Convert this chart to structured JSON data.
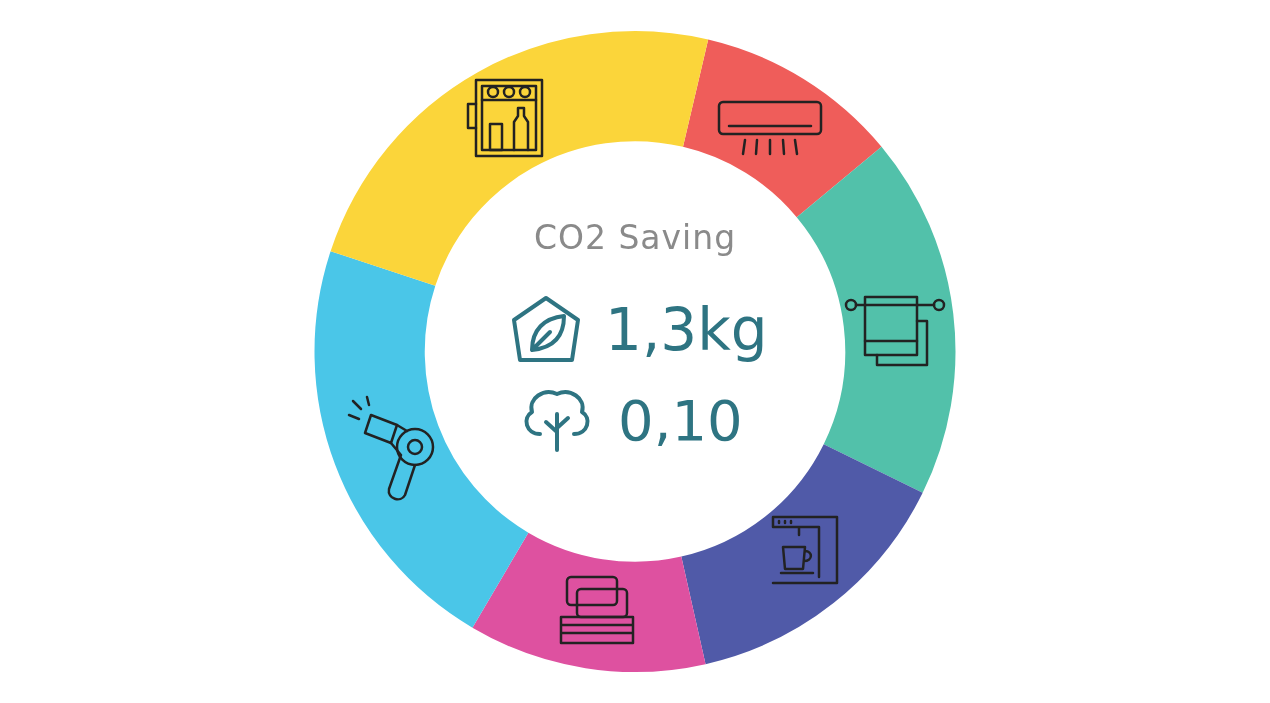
{
  "chart_data": {
    "type": "donut",
    "title": "CO2 Saving",
    "annotations": [
      "1,3kg",
      "0,10"
    ],
    "categories": [
      null,
      null,
      null,
      null,
      null,
      null
    ],
    "values": [
      10.3,
      18.3,
      14.2,
      12.0,
      21.6,
      23.6
    ],
    "colors": [
      "#ef5d5a",
      "#52c1aa",
      "#505aa8",
      "#de51a0",
      "#4ac6e8",
      "#fbd53a"
    ],
    "legend": false
  }
}
